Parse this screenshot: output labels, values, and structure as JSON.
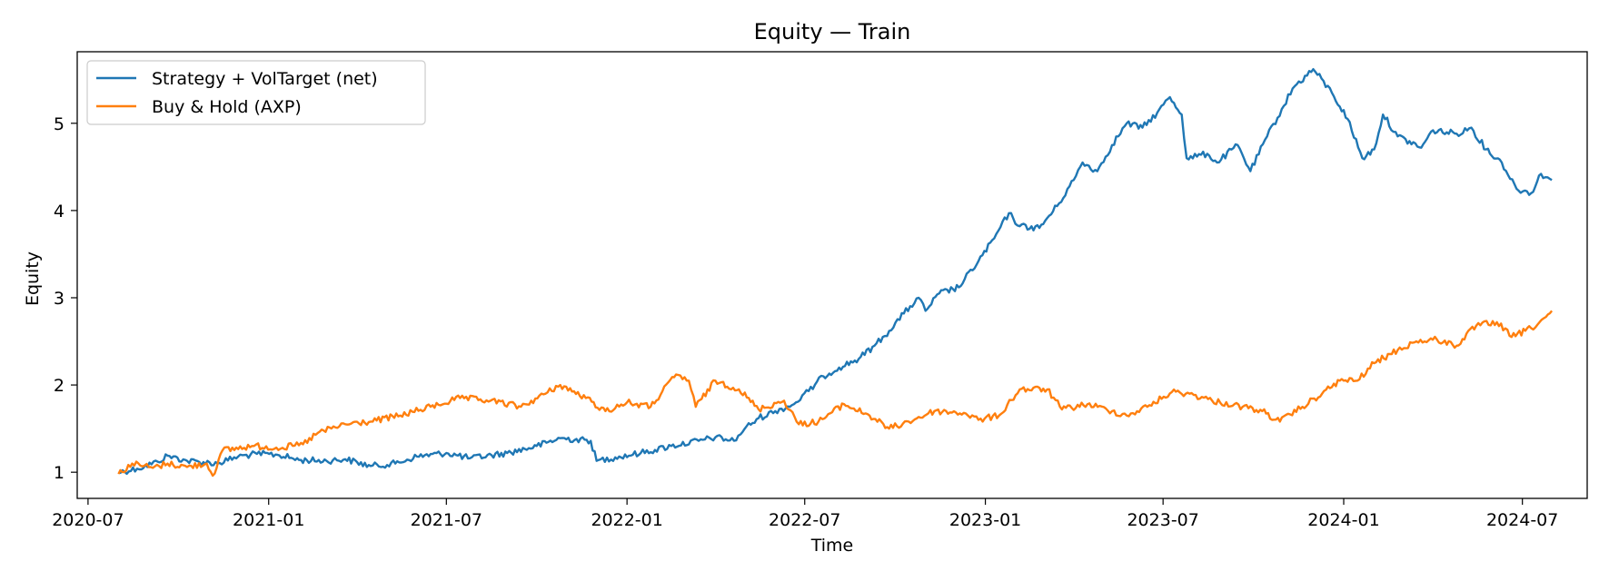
{
  "chart_data": {
    "type": "line",
    "title": "Equity — Train",
    "xlabel": "Time",
    "ylabel": "Equity",
    "xlim": [
      "2020-06-20",
      "2024-09-05"
    ],
    "ylim": [
      0.7,
      5.82
    ],
    "x_ticks": [
      "2020-07",
      "2021-01",
      "2021-07",
      "2022-01",
      "2022-07",
      "2023-01",
      "2023-07",
      "2024-01",
      "2024-07"
    ],
    "y_ticks": [
      1,
      2,
      3,
      4,
      5
    ],
    "grid": false,
    "legend_position": "upper-left",
    "series": [
      {
        "name": "Strategy + VolTarget (net)",
        "color": "#1f77b4",
        "points": [
          [
            "2020-08-01",
            1.0
          ],
          [
            "2020-08-20",
            1.04
          ],
          [
            "2020-09-10",
            1.12
          ],
          [
            "2020-09-20",
            1.19
          ],
          [
            "2020-10-10",
            1.13
          ],
          [
            "2020-11-10",
            1.1
          ],
          [
            "2020-12-01",
            1.18
          ],
          [
            "2020-12-20",
            1.21
          ],
          [
            "2021-01-10",
            1.2
          ],
          [
            "2021-02-01",
            1.14
          ],
          [
            "2021-03-01",
            1.13
          ],
          [
            "2021-03-20",
            1.15
          ],
          [
            "2021-04-15",
            1.07
          ],
          [
            "2021-05-10",
            1.1
          ],
          [
            "2021-06-01",
            1.18
          ],
          [
            "2021-07-01",
            1.22
          ],
          [
            "2021-07-25",
            1.16
          ],
          [
            "2021-09-01",
            1.22
          ],
          [
            "2021-10-01",
            1.3
          ],
          [
            "2021-10-25",
            1.39
          ],
          [
            "2021-11-25",
            1.36
          ],
          [
            "2021-12-01",
            1.13
          ],
          [
            "2021-12-20",
            1.17
          ],
          [
            "2022-01-15",
            1.22
          ],
          [
            "2022-02-15",
            1.3
          ],
          [
            "2022-03-15",
            1.36
          ],
          [
            "2022-04-01",
            1.4
          ],
          [
            "2022-04-20",
            1.36
          ],
          [
            "2022-05-01",
            1.5
          ],
          [
            "2022-05-15",
            1.62
          ],
          [
            "2022-06-01",
            1.7
          ],
          [
            "2022-06-20",
            1.78
          ],
          [
            "2022-07-05",
            1.93
          ],
          [
            "2022-07-20",
            2.1
          ],
          [
            "2022-08-05",
            2.2
          ],
          [
            "2022-08-25",
            2.3
          ],
          [
            "2022-09-10",
            2.45
          ],
          [
            "2022-09-25",
            2.62
          ],
          [
            "2022-10-10",
            2.82
          ],
          [
            "2022-10-25",
            3.0
          ],
          [
            "2022-11-01",
            2.85
          ],
          [
            "2022-11-15",
            3.05
          ],
          [
            "2022-12-05",
            3.12
          ],
          [
            "2022-12-25",
            3.42
          ],
          [
            "2023-01-10",
            3.68
          ],
          [
            "2023-01-25",
            3.97
          ],
          [
            "2023-02-05",
            3.82
          ],
          [
            "2023-02-25",
            3.8
          ],
          [
            "2023-03-15",
            4.05
          ],
          [
            "2023-04-01",
            4.35
          ],
          [
            "2023-04-10",
            4.55
          ],
          [
            "2023-04-25",
            4.45
          ],
          [
            "2023-05-10",
            4.75
          ],
          [
            "2023-05-25",
            5.0
          ],
          [
            "2023-06-10",
            4.95
          ],
          [
            "2023-06-25",
            5.12
          ],
          [
            "2023-07-08",
            5.3
          ],
          [
            "2023-07-20",
            5.1
          ],
          [
            "2023-07-25",
            4.6
          ],
          [
            "2023-08-15",
            4.65
          ],
          [
            "2023-08-25",
            4.55
          ],
          [
            "2023-09-15",
            4.75
          ],
          [
            "2023-09-28",
            4.45
          ],
          [
            "2023-10-15",
            4.85
          ],
          [
            "2023-11-01",
            5.2
          ],
          [
            "2023-11-10",
            5.4
          ],
          [
            "2023-12-01",
            5.62
          ],
          [
            "2023-12-20",
            5.35
          ],
          [
            "2024-01-05",
            5.05
          ],
          [
            "2024-01-20",
            4.6
          ],
          [
            "2024-02-01",
            4.7
          ],
          [
            "2024-02-10",
            5.1
          ],
          [
            "2024-02-25",
            4.85
          ],
          [
            "2024-03-20",
            4.72
          ],
          [
            "2024-04-01",
            4.92
          ],
          [
            "2024-04-25",
            4.88
          ],
          [
            "2024-05-10",
            4.95
          ],
          [
            "2024-05-25",
            4.7
          ],
          [
            "2024-06-10",
            4.55
          ],
          [
            "2024-06-25",
            4.25
          ],
          [
            "2024-07-10",
            4.2
          ],
          [
            "2024-07-20",
            4.42
          ],
          [
            "2024-07-31",
            4.35
          ]
        ]
      },
      {
        "name": "Buy & Hold (AXP)",
        "color": "#ff7f0e",
        "points": [
          [
            "2020-08-01",
            0.98
          ],
          [
            "2020-08-15",
            1.1
          ],
          [
            "2020-09-05",
            1.05
          ],
          [
            "2020-09-20",
            1.1
          ],
          [
            "2020-10-10",
            1.06
          ],
          [
            "2020-10-30",
            1.1
          ],
          [
            "2020-11-05",
            0.96
          ],
          [
            "2020-11-15",
            1.25
          ],
          [
            "2020-12-15",
            1.3
          ],
          [
            "2021-01-15",
            1.28
          ],
          [
            "2021-02-05",
            1.32
          ],
          [
            "2021-02-20",
            1.45
          ],
          [
            "2021-03-20",
            1.55
          ],
          [
            "2021-04-15",
            1.58
          ],
          [
            "2021-05-15",
            1.65
          ],
          [
            "2021-06-15",
            1.75
          ],
          [
            "2021-07-15",
            1.85
          ],
          [
            "2021-08-15",
            1.82
          ],
          [
            "2021-09-15",
            1.75
          ],
          [
            "2021-10-10",
            1.9
          ],
          [
            "2021-10-25",
            2.0
          ],
          [
            "2021-11-20",
            1.85
          ],
          [
            "2021-12-10",
            1.7
          ],
          [
            "2022-01-01",
            1.8
          ],
          [
            "2022-01-25",
            1.75
          ],
          [
            "2022-02-20",
            2.12
          ],
          [
            "2022-03-05",
            2.05
          ],
          [
            "2022-03-12",
            1.75
          ],
          [
            "2022-04-01",
            2.05
          ],
          [
            "2022-04-25",
            1.95
          ],
          [
            "2022-05-15",
            1.72
          ],
          [
            "2022-06-10",
            1.82
          ],
          [
            "2022-06-25",
            1.55
          ],
          [
            "2022-07-15",
            1.58
          ],
          [
            "2022-08-10",
            1.78
          ],
          [
            "2022-09-05",
            1.65
          ],
          [
            "2022-09-25",
            1.5
          ],
          [
            "2022-10-15",
            1.58
          ],
          [
            "2022-11-10",
            1.7
          ],
          [
            "2022-12-10",
            1.68
          ],
          [
            "2022-12-25",
            1.6
          ],
          [
            "2023-01-15",
            1.65
          ],
          [
            "2023-02-05",
            1.95
          ],
          [
            "2023-03-05",
            1.95
          ],
          [
            "2023-03-20",
            1.72
          ],
          [
            "2023-04-15",
            1.78
          ],
          [
            "2023-05-10",
            1.7
          ],
          [
            "2023-05-25",
            1.65
          ],
          [
            "2023-06-15",
            1.75
          ],
          [
            "2023-07-10",
            1.92
          ],
          [
            "2023-07-28",
            1.9
          ],
          [
            "2023-08-20",
            1.82
          ],
          [
            "2023-09-20",
            1.75
          ],
          [
            "2023-10-10",
            1.7
          ],
          [
            "2023-10-28",
            1.58
          ],
          [
            "2023-11-20",
            1.75
          ],
          [
            "2023-12-10",
            1.9
          ],
          [
            "2023-12-28",
            2.05
          ],
          [
            "2024-01-15",
            2.05
          ],
          [
            "2024-02-01",
            2.25
          ],
          [
            "2024-02-25",
            2.4
          ],
          [
            "2024-03-15",
            2.5
          ],
          [
            "2024-04-05",
            2.52
          ],
          [
            "2024-04-25",
            2.45
          ],
          [
            "2024-05-15",
            2.68
          ],
          [
            "2024-06-05",
            2.72
          ],
          [
            "2024-06-20",
            2.55
          ],
          [
            "2024-07-10",
            2.65
          ],
          [
            "2024-07-25",
            2.78
          ],
          [
            "2024-07-31",
            2.85
          ]
        ]
      }
    ]
  }
}
